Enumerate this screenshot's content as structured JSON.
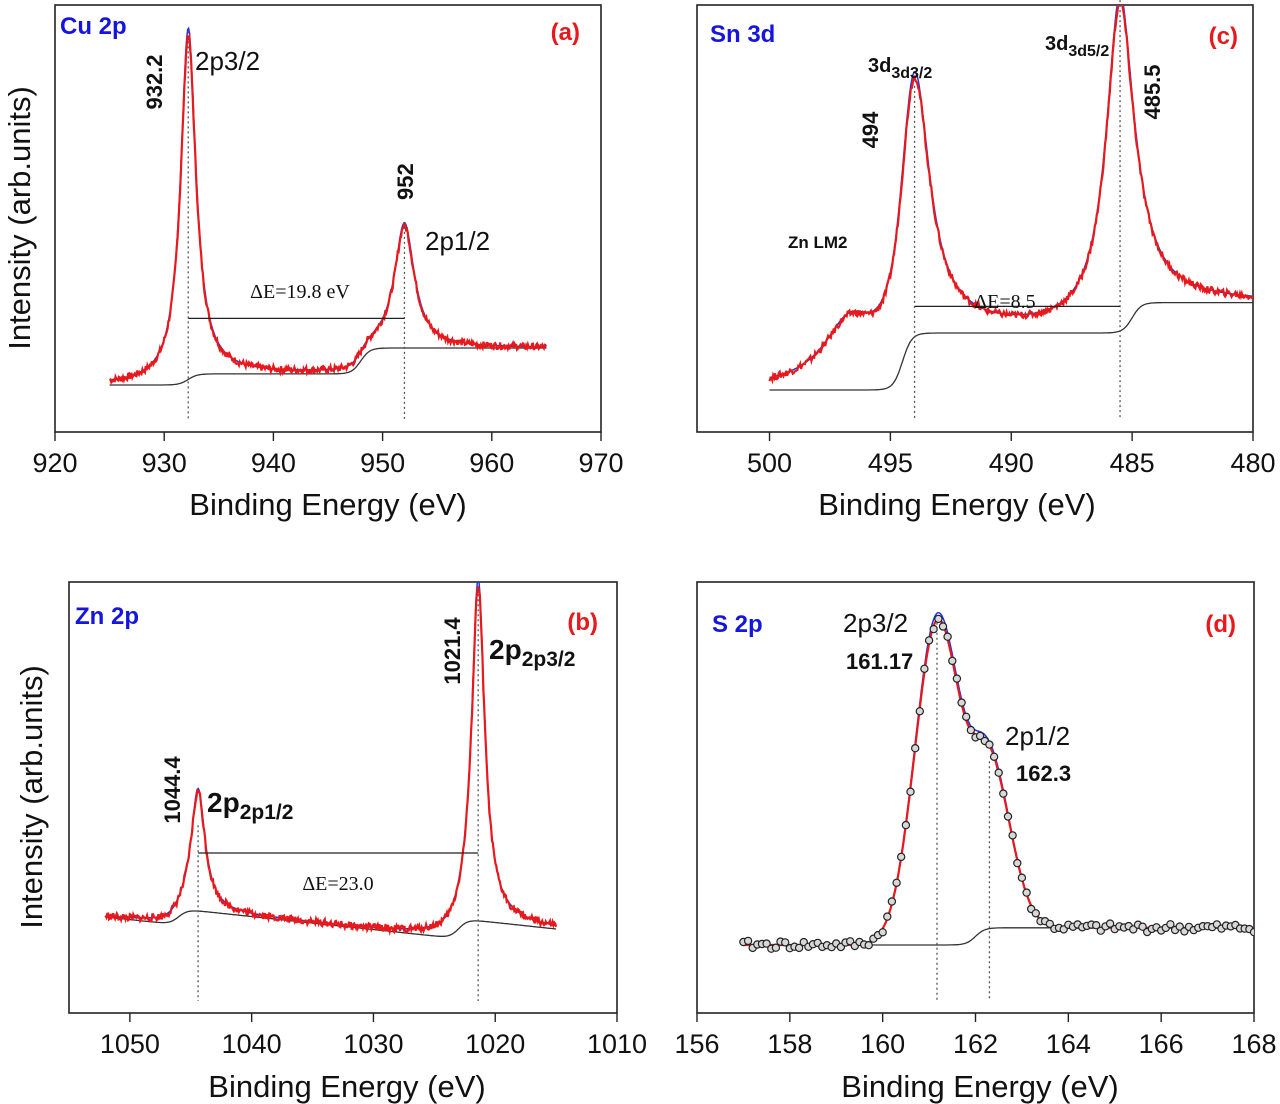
{
  "colors": {
    "element": "#1515e0",
    "panel": "#e8191c",
    "envelope": "#e8191c",
    "component": "#1f33e6",
    "background": "#333333",
    "points": "#d8d8d8"
  },
  "chart_data": [
    {
      "id": "a",
      "type": "line",
      "element_label": "Cu 2p",
      "panel_label": "(a)",
      "xlabel": "Binding Energy (eV)",
      "ylabel": "Intensity (arb.units)",
      "xlim": [
        920,
        970
      ],
      "x_reversed": false,
      "xticks": [
        920,
        930,
        940,
        950,
        960,
        970
      ],
      "xtick_labels": [
        "920",
        "930",
        "940",
        "950",
        "960",
        "970"
      ],
      "data_range": [
        925,
        965
      ],
      "peaks": [
        {
          "center": 932.2,
          "height": 0.93,
          "width": 0.85,
          "label": "2p3/2",
          "value_label": "932.2"
        },
        {
          "center": 952,
          "height": 0.33,
          "width": 1.1,
          "label": "2p1/2",
          "value_label": "952"
        }
      ],
      "delta_label": "ΔE=19.8 eV",
      "delta_span": [
        932.2,
        952
      ],
      "delta_level": 0.18,
      "background_steps": [
        [
          932.2,
          0.03
        ],
        [
          948,
          0.07
        ]
      ]
    },
    {
      "id": "c",
      "type": "line",
      "element_label": "Sn 3d",
      "panel_label": "(c)",
      "xlabel": "Binding Energy (eV)",
      "ylabel": "",
      "xlim": [
        503,
        480
      ],
      "x_reversed": true,
      "xticks": [
        500,
        495,
        490,
        485,
        480
      ],
      "xtick_labels": [
        "500",
        "495",
        "490",
        "485",
        "480"
      ],
      "data_range": [
        500,
        480
      ],
      "peaks": [
        {
          "center": 494,
          "height": 0.65,
          "width": 0.75,
          "label": "3d3/2",
          "value_label": "494"
        },
        {
          "center": 485.5,
          "height": 0.86,
          "width": 0.7,
          "label": "3d5/2",
          "value_label": "485.5"
        },
        {
          "center": 496.7,
          "height": 0.15,
          "width": 1.3,
          "label": "Zn LM2",
          "value_label": ""
        }
      ],
      "delta_label": "ΔE=8.5",
      "delta_span": [
        494,
        485.5
      ],
      "delta_level": 0.22,
      "background_steps": [
        [
          494.5,
          0.15
        ],
        [
          485,
          0.08
        ]
      ]
    },
    {
      "id": "b",
      "type": "line",
      "element_label": "Zn 2p",
      "panel_label": "(b)",
      "xlabel": "Binding Energy (eV)",
      "ylabel": "Intensity (arb.units)",
      "xlim": [
        1055,
        1010
      ],
      "x_reversed": true,
      "xticks": [
        1050,
        1040,
        1030,
        1020,
        1010
      ],
      "xtick_labels": [
        "1050",
        "1040",
        "1030",
        "1020",
        "1010"
      ],
      "data_range": [
        1052,
        1015
      ],
      "peaks": [
        {
          "center": 1044.4,
          "height": 0.3,
          "width": 0.7,
          "label": "2p1/2",
          "value_label": "1044.4"
        },
        {
          "center": 1021.4,
          "height": 0.84,
          "width": 0.65,
          "label": "2p3/2",
          "value_label": "1021.4"
        }
      ],
      "delta_label": "ΔE=23.0",
      "delta_span": [
        1044.4,
        1021.4
      ],
      "delta_level": 0.28,
      "background_steps": [
        [
          1046,
          0.04
        ],
        [
          1023,
          0.05
        ]
      ]
    },
    {
      "id": "d",
      "type": "scatter",
      "element_label": "S 2p",
      "panel_label": "(d)",
      "xlabel": "Binding Energy (eV)",
      "ylabel": "",
      "xlim": [
        156,
        168
      ],
      "x_reversed": false,
      "xticks": [
        156,
        158,
        160,
        162,
        164,
        166,
        168
      ],
      "xtick_labels": [
        "156",
        "158",
        "160",
        "162",
        "164",
        "166",
        "168"
      ],
      "data_range": [
        157,
        168
      ],
      "peaks": [
        {
          "center": 161.17,
          "height": 0.74,
          "width": 0.48,
          "label": "2p3/2",
          "value_label": "161.17"
        },
        {
          "center": 162.3,
          "height": 0.38,
          "width": 0.45,
          "label": "2p1/2",
          "value_label": "162.3"
        }
      ],
      "delta_label": "",
      "background_steps": [
        [
          162,
          0.04
        ]
      ]
    }
  ]
}
